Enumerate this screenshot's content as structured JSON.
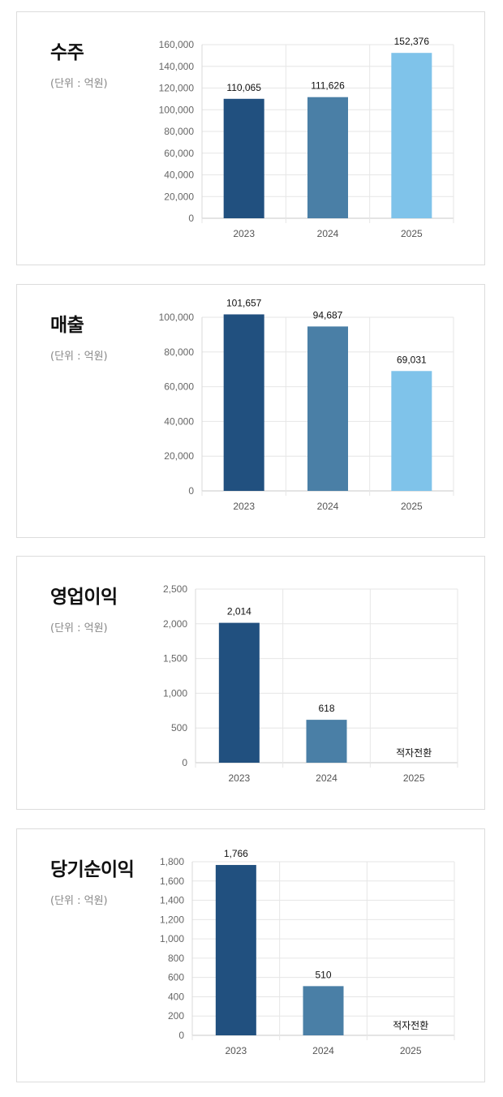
{
  "cards": [
    {
      "title": "수주",
      "unit": "(단위 : 억원)",
      "chart_data": {
        "type": "bar",
        "title": "수주",
        "categories": [
          "2023",
          "2024",
          "2025"
        ],
        "values": [
          110065,
          111626,
          152376
        ],
        "data_labels": [
          "110,065",
          "111,626",
          "152,376"
        ],
        "ylim": [
          0,
          160000
        ],
        "yticks": [
          0,
          20000,
          40000,
          60000,
          80000,
          100000,
          120000,
          140000,
          160000
        ],
        "ytick_labels": [
          "0",
          "20,000",
          "40,000",
          "60,000",
          "80,000",
          "100,000",
          "120,000",
          "140,000",
          "160,000"
        ],
        "colors": [
          "#21507f",
          "#4a7fa6",
          "#7fc3ea"
        ],
        "grid": true
      }
    },
    {
      "title": "매출",
      "unit": "(단위 : 억원)",
      "chart_data": {
        "type": "bar",
        "title": "매출",
        "categories": [
          "2023",
          "2024",
          "2025"
        ],
        "values": [
          101657,
          94687,
          69031
        ],
        "data_labels": [
          "101,657",
          "94,687",
          "69,031"
        ],
        "ylim": [
          0,
          100000
        ],
        "yticks": [
          0,
          20000,
          40000,
          60000,
          80000,
          100000
        ],
        "ytick_labels": [
          "0",
          "20,000",
          "40,000",
          "60,000",
          "80,000",
          "100,000"
        ],
        "colors": [
          "#21507f",
          "#4a7fa6",
          "#7fc3ea"
        ],
        "grid": true
      }
    },
    {
      "title": "영업이익",
      "unit": "(단위 : 억원)",
      "chart_data": {
        "type": "bar",
        "title": "영업이익",
        "categories": [
          "2023",
          "2024",
          "2025"
        ],
        "values": [
          2014,
          618,
          null
        ],
        "data_labels": [
          "2,014",
          "618",
          "적자전환"
        ],
        "ylim": [
          0,
          2500
        ],
        "yticks": [
          0,
          500,
          1000,
          1500,
          2000,
          2500
        ],
        "ytick_labels": [
          "0",
          "500",
          "1,000",
          "1,500",
          "2,000",
          "2,500"
        ],
        "colors": [
          "#21507f",
          "#4a7fa6",
          "#7fc3ea"
        ],
        "grid": true
      }
    },
    {
      "title": "당기순이익",
      "unit": "(단위 : 억원)",
      "chart_data": {
        "type": "bar",
        "title": "당기순이익",
        "categories": [
          "2023",
          "2024",
          "2025"
        ],
        "values": [
          1766,
          510,
          null
        ],
        "data_labels": [
          "1,766",
          "510",
          "적자전환"
        ],
        "ylim": [
          0,
          1800
        ],
        "yticks": [
          0,
          200,
          400,
          600,
          800,
          1000,
          1200,
          1400,
          1600,
          1800
        ],
        "ytick_labels": [
          "0",
          "200",
          "400",
          "600",
          "800",
          "1,000",
          "1,200",
          "1,400",
          "1,600",
          "1,800"
        ],
        "colors": [
          "#21507f",
          "#4a7fa6",
          "#7fc3ea"
        ],
        "grid": true
      }
    }
  ]
}
